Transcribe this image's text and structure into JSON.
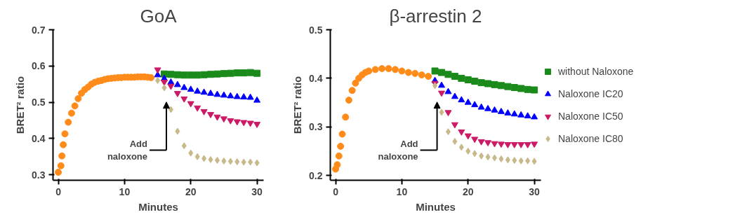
{
  "chart_data": [
    {
      "type": "scatter",
      "title": "GoA",
      "xlabel": "Minutes",
      "ylabel": "BRET² ratio",
      "xlim": [
        -0.8,
        31
      ],
      "ylim": [
        0.285,
        0.7
      ],
      "xticks": [
        0,
        10,
        20,
        30
      ],
      "yticks": [
        0.3,
        0.4,
        0.5,
        0.6,
        0.7
      ],
      "grid": false,
      "annotations": [
        "Add naloxone"
      ],
      "series": [
        {
          "color": "#ff8c1a",
          "marker": "circle",
          "x": [
            0,
            0.4,
            0.55,
            0.75,
            1,
            1.5,
            2,
            2.5,
            3,
            3.5,
            4,
            4.5,
            5,
            5.5,
            6,
            6.5,
            7,
            7.5,
            8,
            8.5,
            9,
            9.5,
            10,
            10.5,
            11,
            11.5,
            12,
            12.5,
            13,
            13.5,
            14
          ],
          "values": [
            0.307,
            0.325,
            0.352,
            0.383,
            0.413,
            0.445,
            0.47,
            0.49,
            0.51,
            0.525,
            0.535,
            0.542,
            0.55,
            0.555,
            0.558,
            0.56,
            0.563,
            0.565,
            0.566,
            0.567,
            0.568,
            0.568,
            0.569,
            0.569,
            0.569,
            0.569,
            0.57,
            0.57,
            0.57,
            0.569,
            0.568
          ]
        },
        {
          "color": "#1a8a1a",
          "marker": "square",
          "x": [
            16,
            17,
            18,
            19,
            20,
            21,
            22,
            23,
            24,
            25,
            26,
            27,
            28,
            29,
            30
          ],
          "values": [
            0.578,
            0.577,
            0.576,
            0.575,
            0.575,
            0.575,
            0.576,
            0.577,
            0.578,
            0.579,
            0.58,
            0.581,
            0.581,
            0.582,
            0.58
          ]
        },
        {
          "color": "#0000ff",
          "marker": "triangle",
          "x": [
            15,
            16,
            17,
            18,
            19,
            20,
            21,
            22,
            23,
            24,
            25,
            26,
            27,
            28,
            29,
            30
          ],
          "values": [
            0.575,
            0.565,
            0.555,
            0.548,
            0.54,
            0.535,
            0.53,
            0.527,
            0.524,
            0.521,
            0.519,
            0.517,
            0.515,
            0.514,
            0.513,
            0.505
          ]
        },
        {
          "color": "#cc1a66",
          "x": [
            15,
            16,
            17,
            18,
            19,
            20,
            21,
            22,
            23,
            24,
            25,
            26,
            27,
            28,
            29,
            30
          ],
          "values": [
            0.59,
            0.556,
            0.545,
            0.525,
            0.51,
            0.497,
            0.485,
            0.475,
            0.467,
            0.46,
            0.455,
            0.45,
            0.447,
            0.445,
            0.443,
            0.44
          ]
        },
        {
          "color": "#c8b98a",
          "marker": "diamond",
          "x": [
            15,
            16,
            17,
            18,
            19,
            20,
            21,
            22,
            23,
            24,
            25,
            26,
            27,
            28,
            29,
            30
          ],
          "values": [
            0.56,
            0.54,
            0.48,
            0.42,
            0.38,
            0.36,
            0.35,
            0.345,
            0.342,
            0.34,
            0.338,
            0.337,
            0.336,
            0.335,
            0.335,
            0.333
          ]
        }
      ]
    },
    {
      "type": "scatter",
      "title": "β-arrestin 2",
      "xlabel": "Minutes",
      "ylabel": "BRET² ratio",
      "xlim": [
        -0.8,
        31
      ],
      "ylim": [
        0.19,
        0.5
      ],
      "xticks": [
        0,
        10,
        20,
        30
      ],
      "yticks": [
        0.2,
        0.3,
        0.4,
        0.5
      ],
      "grid": false,
      "legend": "right",
      "annotations": [
        "Add naloxone"
      ],
      "series": [
        {
          "color": "#ff8c1a",
          "marker": "circle",
          "x": [
            0,
            0.25,
            0.5,
            0.75,
            1,
            1.5,
            2,
            2.5,
            3,
            3.5,
            4,
            4.5,
            5,
            6,
            7,
            8,
            9,
            10,
            11,
            12,
            13,
            14
          ],
          "values": [
            0.213,
            0.222,
            0.24,
            0.26,
            0.285,
            0.32,
            0.355,
            0.375,
            0.39,
            0.4,
            0.407,
            0.412,
            0.415,
            0.418,
            0.42,
            0.42,
            0.418,
            0.415,
            0.412,
            0.41,
            0.407,
            0.404
          ]
        },
        {
          "name": "without Naloxone",
          "color": "#1a8a1a",
          "marker": "square",
          "x": [
            15,
            16,
            17,
            18,
            19,
            20,
            21,
            22,
            23,
            24,
            25,
            26,
            27,
            28,
            29,
            30
          ],
          "values": [
            0.415,
            0.412,
            0.408,
            0.404,
            0.4,
            0.397,
            0.394,
            0.391,
            0.389,
            0.387,
            0.385,
            0.383,
            0.381,
            0.379,
            0.377,
            0.376
          ]
        },
        {
          "name": "Naloxone IC20",
          "color": "#0000ff",
          "marker": "triangle",
          "x": [
            15,
            16,
            17,
            18,
            19,
            20,
            21,
            22,
            23,
            24,
            25,
            26,
            27,
            28,
            29,
            30
          ],
          "values": [
            0.395,
            0.385,
            0.372,
            0.362,
            0.355,
            0.35,
            0.345,
            0.34,
            0.337,
            0.334,
            0.331,
            0.328,
            0.326,
            0.324,
            0.322,
            0.32
          ]
        },
        {
          "name": "Naloxone IC50",
          "color": "#cc1a66",
          "x": [
            15,
            16,
            17,
            18,
            19,
            20,
            21,
            22,
            23,
            24,
            25,
            26,
            27,
            28,
            29,
            30
          ],
          "values": [
            0.39,
            0.37,
            0.33,
            0.305,
            0.29,
            0.282,
            0.275,
            0.27,
            0.268,
            0.266,
            0.265,
            0.264,
            0.264,
            0.264,
            0.264,
            0.265
          ]
        },
        {
          "name": "Naloxone IC80",
          "color": "#c8b98a",
          "marker": "diamond",
          "x": [
            15,
            16,
            17,
            18,
            19,
            20,
            21,
            22,
            23,
            24,
            25,
            26,
            27,
            28,
            29,
            30
          ],
          "values": [
            0.385,
            0.33,
            0.29,
            0.27,
            0.258,
            0.25,
            0.245,
            0.24,
            0.238,
            0.236,
            0.234,
            0.232,
            0.231,
            0.23,
            0.23,
            0.229
          ]
        }
      ]
    }
  ]
}
